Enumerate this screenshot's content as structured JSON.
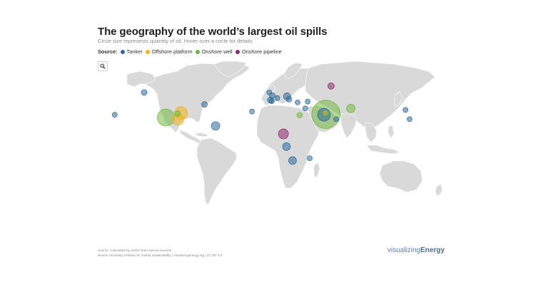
{
  "title": "The geography of the world’s largest oil spills",
  "subtitle": "Circle size represents quantity of oil. Hover over a circle for details.",
  "legend": {
    "label": "Source:",
    "items": [
      {
        "name": "Tanker",
        "color": "#2e6a99"
      },
      {
        "name": "Offshore platform",
        "color": "#f2b21a"
      },
      {
        "name": "Onshore well",
        "color": "#72b63f"
      },
      {
        "name": "Onshore pipeline",
        "color": "#8b2a6b"
      }
    ]
  },
  "search": {
    "icon": "search-icon"
  },
  "map": {
    "land_color": "#d9d9d9",
    "border_color": "#ffffff",
    "spills": [
      {
        "type": "Onshore well",
        "lat": 20.5,
        "lon": -109.5,
        "size": 12
      },
      {
        "type": "Offshore platform",
        "lat": 26,
        "lon": -94.5,
        "size": 9
      },
      {
        "type": "Offshore platform",
        "lat": 18,
        "lon": -97.5,
        "size": 8
      },
      {
        "type": "Onshore well",
        "lat": 25.5,
        "lon": -98,
        "size": 4
      },
      {
        "type": "Tanker",
        "lat": 52,
        "lon": -131,
        "size": 4
      },
      {
        "type": "Tanker",
        "lat": 24,
        "lon": -160,
        "size": 3.5
      },
      {
        "type": "Tanker",
        "lat": 37,
        "lon": -71.5,
        "size": 4
      },
      {
        "type": "Tanker",
        "lat": 10,
        "lon": -60.5,
        "size": 6
      },
      {
        "type": "Tanker",
        "lat": 28,
        "lon": -24.5,
        "size": 3.5
      },
      {
        "type": "Tanker",
        "lat": 52,
        "lon": -7.5,
        "size": 3.5
      },
      {
        "type": "Tanker",
        "lat": 48,
        "lon": -4.5,
        "size": 4
      },
      {
        "type": "Tanker",
        "lat": 45,
        "lon": 0.5,
        "size": 3.5
      },
      {
        "type": "Tanker",
        "lat": 42.5,
        "lon": -6.5,
        "size": 4
      },
      {
        "type": "Tanker",
        "lat": 41,
        "lon": -5,
        "size": 3.5
      },
      {
        "type": "Tanker",
        "lat": 47,
        "lon": 10,
        "size": 5
      },
      {
        "type": "Tanker",
        "lat": 43.5,
        "lon": 12,
        "size": 4
      },
      {
        "type": "Tanker",
        "lat": 39.5,
        "lon": 20.5,
        "size": 3.5
      },
      {
        "type": "Tanker",
        "lat": 40.5,
        "lon": 30.5,
        "size": 3.5
      },
      {
        "type": "Tanker",
        "lat": 32,
        "lon": 28,
        "size": 3.5
      },
      {
        "type": "Onshore well",
        "lat": 23.5,
        "lon": 22.5,
        "size": 4
      },
      {
        "type": "Onshore pipeline",
        "lat": 60,
        "lon": 53.5,
        "size": 4.5
      },
      {
        "type": "Onshore well",
        "lat": 24.5,
        "lon": 48.5,
        "size": 20
      },
      {
        "type": "Tanker",
        "lat": 24,
        "lon": 46.5,
        "size": 9
      },
      {
        "type": "Offshore platform",
        "lat": 26,
        "lon": 48,
        "size": 3
      },
      {
        "type": "Onshore well",
        "lat": 24.8,
        "lon": 48.8,
        "size": 2.5
      },
      {
        "type": "Tanker",
        "lat": 18.5,
        "lon": 58.5,
        "size": 3.5
      },
      {
        "type": "Onshore well",
        "lat": 32,
        "lon": 73,
        "size": 6
      },
      {
        "type": "Tanker",
        "lat": 30,
        "lon": 127,
        "size": 3.5
      },
      {
        "type": "Tanker",
        "lat": 18.5,
        "lon": 131,
        "size": 3.5
      },
      {
        "type": "Onshore pipeline",
        "lat": 0,
        "lon": 6.5,
        "size": 7
      },
      {
        "type": "Tanker",
        "lat": -16,
        "lon": 9.5,
        "size": 5.5
      },
      {
        "type": "Tanker",
        "lat": -33.5,
        "lon": 15.5,
        "size": 5.5
      },
      {
        "type": "Tanker",
        "lat": -30.5,
        "lon": 32.5,
        "size": 3.5
      }
    ]
  },
  "source": {
    "line1": "Source: Calculated by author from various sources",
    "line2": "Boston University Institute for Global Sustainability | visualizingenergy.org | CC BY 4.0"
  },
  "logo": {
    "part1": "visualizing",
    "part2": "Energy"
  }
}
